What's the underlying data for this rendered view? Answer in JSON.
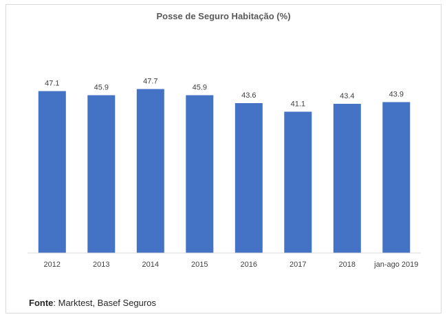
{
  "chart_data": {
    "type": "bar",
    "title": "Posse de Seguro Habitação (%)",
    "categories": [
      "2012",
      "2013",
      "2014",
      "2015",
      "2016",
      "2017",
      "2018",
      "jan-ago 2019"
    ],
    "values": [
      47.1,
      45.9,
      47.7,
      45.9,
      43.6,
      41.1,
      43.4,
      43.9
    ],
    "data_labels": [
      "47.1",
      "45.9",
      "47.7",
      "45.9",
      "43.6",
      "41.1",
      "43.4",
      "43.9"
    ],
    "bar_color": "#4472C4",
    "ylim": [
      0,
      50
    ],
    "grid": false,
    "legend": "none",
    "xlabel": "",
    "ylabel": ""
  },
  "footer": {
    "source_label": "Fonte",
    "source_text": ": Marktest, Basef Seguros"
  }
}
